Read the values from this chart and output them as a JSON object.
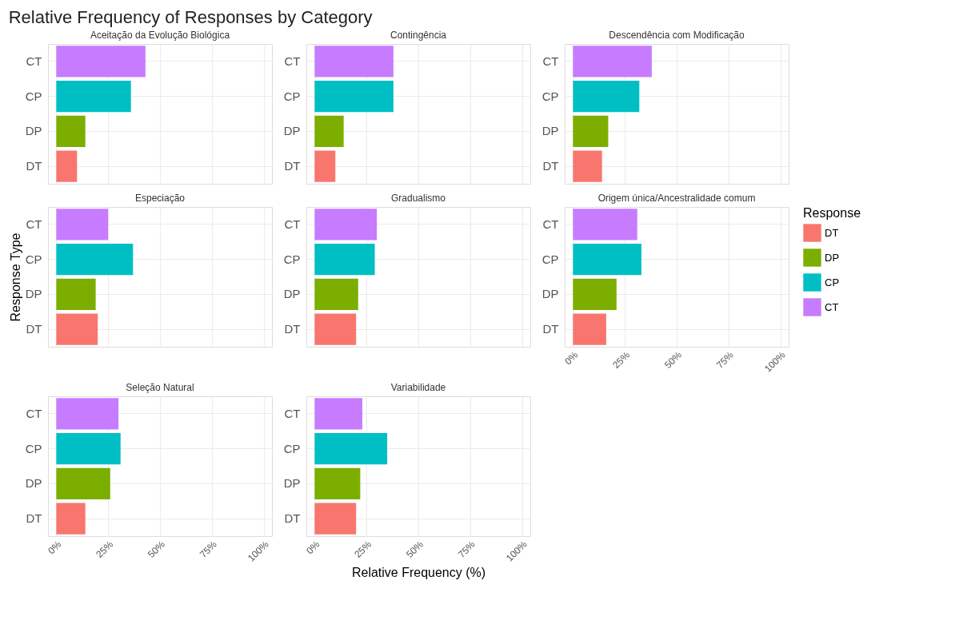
{
  "chart_data": [
    {
      "type": "bar",
      "orientation": "horizontal",
      "title": "Aceitação da Evolução Biológica",
      "annotations": [
        "Relative Frequency of Responses by Category"
      ],
      "categories": [
        "CT",
        "CP",
        "DP",
        "DT"
      ],
      "series": [
        {
          "color": "#f8766d",
          "values": [
            null,
            null,
            null,
            10
          ]
        },
        {
          "color": "#7cae00",
          "values": [
            null,
            null,
            14,
            null
          ]
        },
        {
          "color": "#00bfc4",
          "values": [
            null,
            36,
            null,
            null
          ]
        },
        {
          "color": "#c77cff",
          "values": [
            43,
            null,
            null,
            null
          ]
        }
      ],
      "xlim": [
        -4,
        104
      ],
      "xticks": [
        {
          "value": 0,
          "label": null
        },
        {
          "value": 25,
          "label": null
        },
        {
          "value": 50,
          "label": null
        },
        {
          "value": 75,
          "label": null
        },
        {
          "value": 100,
          "label": null
        }
      ],
      "grid": true,
      "tick_labels": "y"
    },
    {
      "type": "bar",
      "orientation": "horizontal",
      "title": "Contingência",
      "categories": [
        "CT",
        "CP",
        "DP",
        "DT"
      ],
      "series": [
        {
          "color": "#f8766d",
          "values": [
            null,
            null,
            null,
            10
          ]
        },
        {
          "color": "#7cae00",
          "values": [
            null,
            null,
            14,
            null
          ]
        },
        {
          "color": "#00bfc4",
          "values": [
            null,
            38,
            null,
            null
          ]
        },
        {
          "color": "#c77cff",
          "values": [
            38,
            null,
            null,
            null
          ]
        }
      ],
      "xlim": [
        -4,
        104
      ],
      "xticks": [
        {
          "value": 0,
          "label": null
        },
        {
          "value": 25,
          "label": null
        },
        {
          "value": 50,
          "label": null
        },
        {
          "value": 75,
          "label": null
        },
        {
          "value": 100,
          "label": null
        }
      ],
      "grid": true,
      "tick_labels": "y"
    },
    {
      "type": "bar",
      "orientation": "horizontal",
      "title": "Descendência com Modificação",
      "categories": [
        "CT",
        "CP",
        "DP",
        "DT"
      ],
      "series": [
        {
          "color": "#f8766d",
          "values": [
            null,
            null,
            null,
            14
          ]
        },
        {
          "color": "#7cae00",
          "values": [
            null,
            null,
            17,
            null
          ]
        },
        {
          "color": "#00bfc4",
          "values": [
            null,
            32,
            null,
            null
          ]
        },
        {
          "color": "#c77cff",
          "values": [
            38,
            null,
            null,
            null
          ]
        }
      ],
      "xlim": [
        -4,
        104
      ],
      "xticks": [
        {
          "value": 0,
          "label": null
        },
        {
          "value": 25,
          "label": null
        },
        {
          "value": 50,
          "label": null
        },
        {
          "value": 75,
          "label": null
        },
        {
          "value": 100,
          "label": null
        }
      ],
      "grid": true,
      "tick_labels": "y"
    },
    {
      "type": "bar",
      "orientation": "horizontal",
      "title": "Especiação",
      "ylabel": "Response Type",
      "categories": [
        "CT",
        "CP",
        "DP",
        "DT"
      ],
      "series": [
        {
          "color": "#f8766d",
          "values": [
            null,
            null,
            null,
            20
          ]
        },
        {
          "color": "#7cae00",
          "values": [
            null,
            null,
            19,
            null
          ]
        },
        {
          "color": "#00bfc4",
          "values": [
            null,
            37,
            null,
            null
          ]
        },
        {
          "color": "#c77cff",
          "values": [
            25,
            null,
            null,
            null
          ]
        }
      ],
      "xlim": [
        -4,
        104
      ],
      "xticks": [
        {
          "value": 0,
          "label": null
        },
        {
          "value": 25,
          "label": null
        },
        {
          "value": 50,
          "label": null
        },
        {
          "value": 75,
          "label": null
        },
        {
          "value": 100,
          "label": null
        }
      ],
      "grid": true,
      "tick_labels": "y"
    },
    {
      "type": "bar",
      "orientation": "horizontal",
      "title": "Gradualismo",
      "categories": [
        "CT",
        "CP",
        "DP",
        "DT"
      ],
      "series": [
        {
          "color": "#f8766d",
          "values": [
            null,
            null,
            null,
            20
          ]
        },
        {
          "color": "#7cae00",
          "values": [
            null,
            null,
            21,
            null
          ]
        },
        {
          "color": "#00bfc4",
          "values": [
            null,
            29,
            null,
            null
          ]
        },
        {
          "color": "#c77cff",
          "values": [
            30,
            null,
            null,
            null
          ]
        }
      ],
      "xlim": [
        -4,
        104
      ],
      "xticks": [
        {
          "value": 0,
          "label": null
        },
        {
          "value": 25,
          "label": null
        },
        {
          "value": 50,
          "label": null
        },
        {
          "value": 75,
          "label": null
        },
        {
          "value": 100,
          "label": null
        }
      ],
      "grid": true,
      "tick_labels": "y"
    },
    {
      "type": "bar",
      "orientation": "horizontal",
      "title": "Origem única/Ancestralidade comum",
      "legend_title": "Response",
      "legend": "right",
      "categories": [
        "CT",
        "CP",
        "DP",
        "DT"
      ],
      "series": [
        {
          "name": "DT",
          "color": "#f8766d",
          "values": [
            null,
            null,
            null,
            16
          ]
        },
        {
          "name": "DP",
          "color": "#7cae00",
          "values": [
            null,
            null,
            21,
            null
          ]
        },
        {
          "name": "CP",
          "color": "#00bfc4",
          "values": [
            null,
            33,
            null,
            null
          ]
        },
        {
          "name": "CT",
          "color": "#c77cff",
          "values": [
            31,
            null,
            null,
            null
          ]
        }
      ],
      "xlim": [
        -4,
        104
      ],
      "xticks": [
        {
          "value": 0,
          "label": "0%"
        },
        {
          "value": 25,
          "label": "25%"
        },
        {
          "value": 50,
          "label": "50%"
        },
        {
          "value": 75,
          "label": "75%"
        },
        {
          "value": 100,
          "label": "100%"
        }
      ],
      "grid": true
    },
    {
      "type": "bar",
      "orientation": "horizontal",
      "title": "Seleção Natural",
      "categories": [
        "CT",
        "CP",
        "DP",
        "DT"
      ],
      "series": [
        {
          "color": "#f8766d",
          "values": [
            null,
            null,
            null,
            14
          ]
        },
        {
          "color": "#7cae00",
          "values": [
            null,
            null,
            26,
            null
          ]
        },
        {
          "color": "#00bfc4",
          "values": [
            null,
            31,
            null,
            null
          ]
        },
        {
          "color": "#c77cff",
          "values": [
            30,
            null,
            null,
            null
          ]
        }
      ],
      "xlim": [
        -4,
        104
      ],
      "xticks": [
        {
          "value": 0,
          "label": "0%"
        },
        {
          "value": 25,
          "label": "25%"
        },
        {
          "value": 50,
          "label": "50%"
        },
        {
          "value": 75,
          "label": "75%"
        },
        {
          "value": 100,
          "label": "100%"
        }
      ],
      "grid": true
    },
    {
      "type": "bar",
      "orientation": "horizontal",
      "title": "Variabilidade",
      "xlabel": "Relative Frequency (%)",
      "categories": [
        "CT",
        "CP",
        "DP",
        "DT"
      ],
      "series": [
        {
          "color": "#f8766d",
          "values": [
            null,
            null,
            null,
            20
          ]
        },
        {
          "color": "#7cae00",
          "values": [
            null,
            null,
            22,
            null
          ]
        },
        {
          "color": "#00bfc4",
          "values": [
            null,
            35,
            null,
            null
          ]
        },
        {
          "color": "#c77cff",
          "values": [
            23,
            null,
            null,
            null
          ]
        }
      ],
      "xlim": [
        -4,
        104
      ],
      "xticks": [
        {
          "value": 0,
          "label": "0%"
        },
        {
          "value": 25,
          "label": "25%"
        },
        {
          "value": 50,
          "label": "50%"
        },
        {
          "value": 75,
          "label": "75%"
        },
        {
          "value": 100,
          "label": "100%"
        }
      ],
      "grid": true
    }
  ]
}
